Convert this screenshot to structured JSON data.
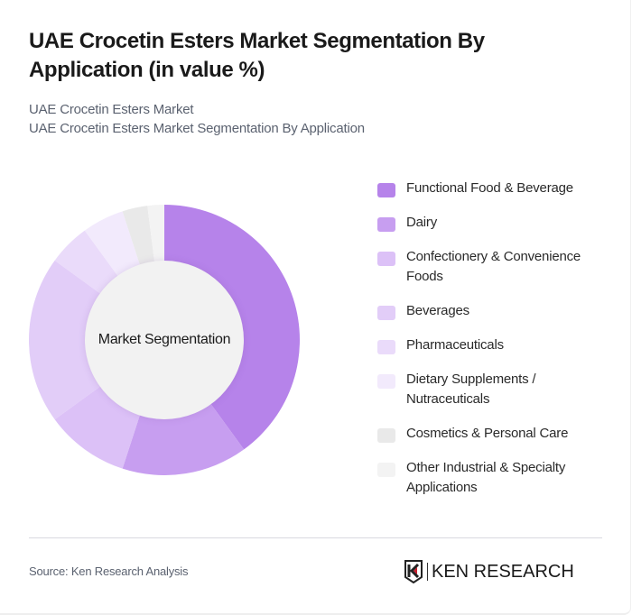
{
  "header": {
    "title": "UAE Crocetin Esters Market Segmentation By Application (in value %)",
    "subtitle_line1": "UAE Crocetin Esters Market",
    "subtitle_line2": "UAE Crocetin Esters Market Segmentation By Application"
  },
  "donut": {
    "center_label": "Market Segmentation"
  },
  "legend": {
    "items": [
      {
        "label": "Functional Food & Beverage",
        "color": "#b683ea"
      },
      {
        "label": "Dairy",
        "color": "#c79ef0"
      },
      {
        "label": "Confectionery & Convenience Foods",
        "color": "#dcc1f7"
      },
      {
        "label": "Beverages",
        "color": "#e2cdf8"
      },
      {
        "label": "Pharmaceuticals",
        "color": "#eadbfa"
      },
      {
        "label": "Dietary Supplements / Nutraceuticals",
        "color": "#f2eafc"
      },
      {
        "label": "Cosmetics & Personal Care",
        "color": "#e9e9e9"
      },
      {
        "label": "Other Industrial & Specialty Applications",
        "color": "#f3f3f3"
      }
    ]
  },
  "footer": {
    "source": "Source: Ken Research Analysis",
    "brand_k": "K",
    "brand_rest": "EN RESEARCH"
  },
  "chart_data": {
    "type": "pie",
    "variant": "donut",
    "title": "UAE Crocetin Esters Market Segmentation By Application (in value %)",
    "subtitle": "UAE Crocetin Esters Market Segmentation By Application",
    "center_label": "Market Segmentation",
    "categories": [
      "Functional Food & Beverage",
      "Dairy",
      "Confectionery & Convenience Foods",
      "Beverages",
      "Pharmaceuticals",
      "Dietary Supplements / Nutraceuticals",
      "Cosmetics & Personal Care",
      "Other Industrial & Specialty Applications"
    ],
    "values": [
      40,
      15,
      10,
      20,
      5,
      5,
      3,
      2
    ],
    "unit": "%",
    "colors": [
      "#b683ea",
      "#c79ef0",
      "#dcc1f7",
      "#e2cdf8",
      "#eadbfa",
      "#f2eafc",
      "#e9e9e9",
      "#f3f3f3"
    ],
    "start_angle": "12 o'clock, clockwise",
    "legend_position": "right",
    "source": "Ken Research Analysis"
  }
}
